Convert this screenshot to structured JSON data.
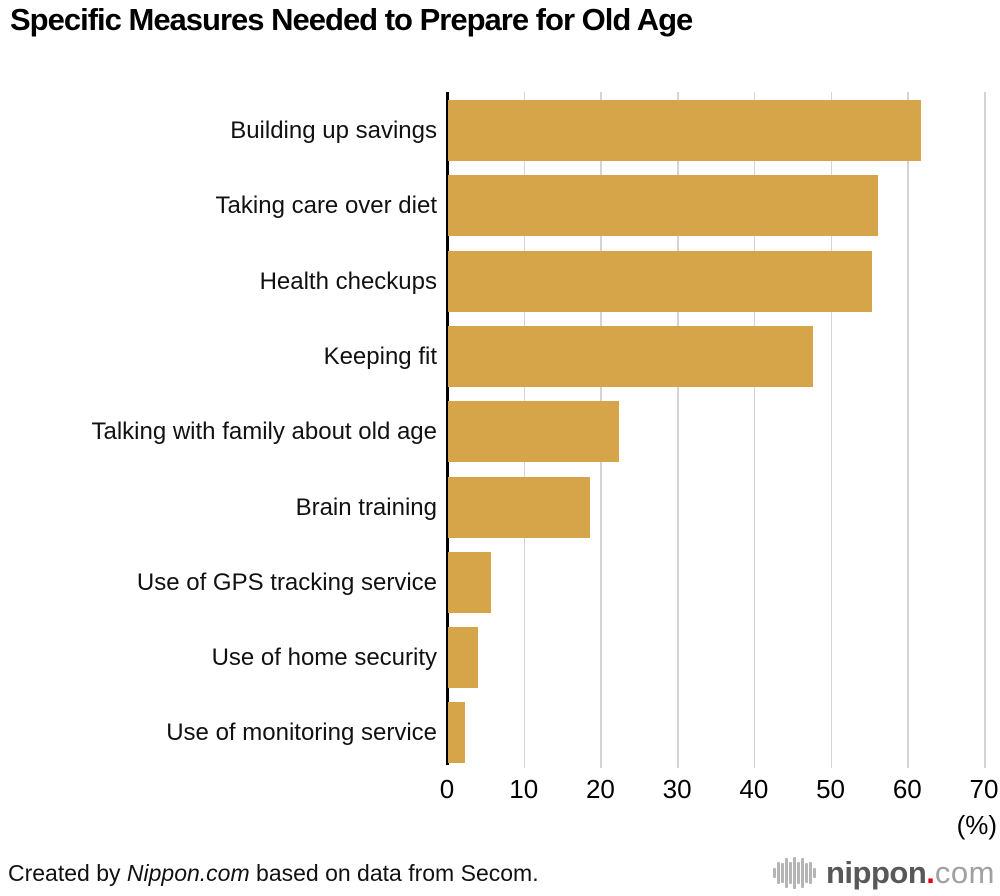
{
  "title": "Specific Measures Needed to Prepare for Old Age",
  "chart_data": {
    "type": "bar",
    "orientation": "horizontal",
    "title": "Specific Measures Needed to Prepare for Old Age",
    "categories": [
      "Building up savings",
      "Taking care over diet",
      "Health checkups",
      "Keeping fit",
      "Talking with family about old age",
      "Brain training",
      "Use of GPS tracking service",
      "Use of home security",
      "Use of monitoring service"
    ],
    "values": [
      61.6,
      56.1,
      55.3,
      47.6,
      22.3,
      18.5,
      5.6,
      3.9,
      2.2
    ],
    "xlabel": "(%)",
    "xticks": [
      0,
      10,
      20,
      30,
      40,
      50,
      60,
      70
    ],
    "xlim": [
      0,
      70
    ],
    "grid": true,
    "legend": "none",
    "bar_color": "#d6a54a",
    "gridline_color": "#d4d4d4",
    "axis_color": "#000000"
  },
  "footer": {
    "credit_prefix": "Created by ",
    "credit_source": "Nippon.com",
    "credit_suffix": " based on data from Secom.",
    "logo": {
      "name_bold": "nippon",
      "dot": ".",
      "name_light": "com",
      "icon": "soundwave-bars-icon",
      "bold_color": "#595757",
      "dot_color": "#e60012",
      "light_color": "#9fa0a0",
      "icon_color": "#b5b5b6"
    }
  }
}
